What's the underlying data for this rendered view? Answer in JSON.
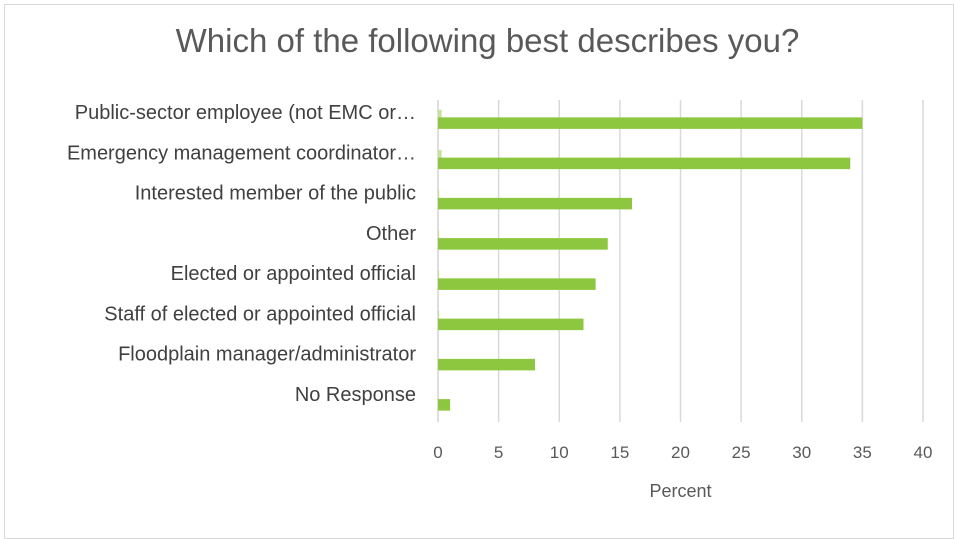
{
  "chart_data": {
    "type": "bar",
    "orientation": "horizontal",
    "title": "Which of the following best describes you?",
    "xlabel": "Percent",
    "ylabel": "",
    "categories": [
      "Public-sector employee (not EMC or…",
      "Emergency management coordinator…",
      "Interested member of the public",
      "Other",
      "Elected or appointed official",
      "Staff of elected or appointed official",
      "Floodplain manager/administrator",
      "No Response"
    ],
    "series": [
      {
        "color": "#8dc63f",
        "values": [
          35,
          34,
          16,
          14,
          13,
          12,
          8,
          1
        ]
      }
    ],
    "minor_values": [
      0.3,
      0.3,
      0.1,
      0.1,
      0.1,
      0.1,
      0,
      0
    ],
    "minor_color": "#c9e29b",
    "xlim": [
      0,
      40
    ],
    "xticks": [
      "0",
      "5",
      "10",
      "15",
      "20",
      "25",
      "30",
      "35",
      "40"
    ],
    "grid": true,
    "legend": "none"
  },
  "colors": {
    "bar": "#8dc63f",
    "gridline": "#d9d9d9",
    "text": "#595959"
  }
}
